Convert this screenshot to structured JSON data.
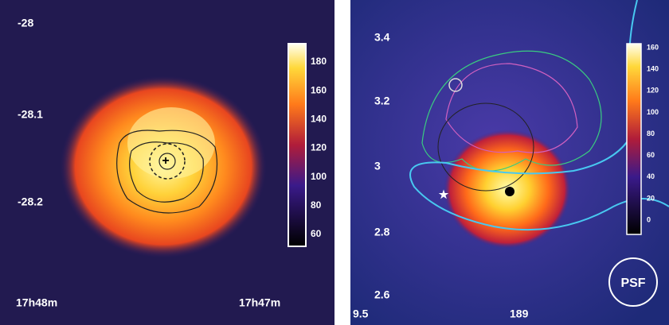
{
  "panels": [
    {
      "y_ticks": [
        "-28",
        "-28.1",
        "-28.2"
      ],
      "x_labels": [
        "17h48m",
        "17h47m"
      ],
      "colorbar_ticks": [
        "180",
        "160",
        "140",
        "120",
        "100",
        "80",
        "60"
      ]
    },
    {
      "y_ticks": [
        "3.4",
        "3.2",
        "3",
        "2.8",
        "2.6"
      ],
      "x_labels": [
        "9.5",
        "189"
      ],
      "colorbar_ticks": [
        "160",
        "140",
        "120",
        "100",
        "80",
        "60",
        "40",
        "20",
        "0"
      ],
      "psf_label": "PSF"
    }
  ]
}
